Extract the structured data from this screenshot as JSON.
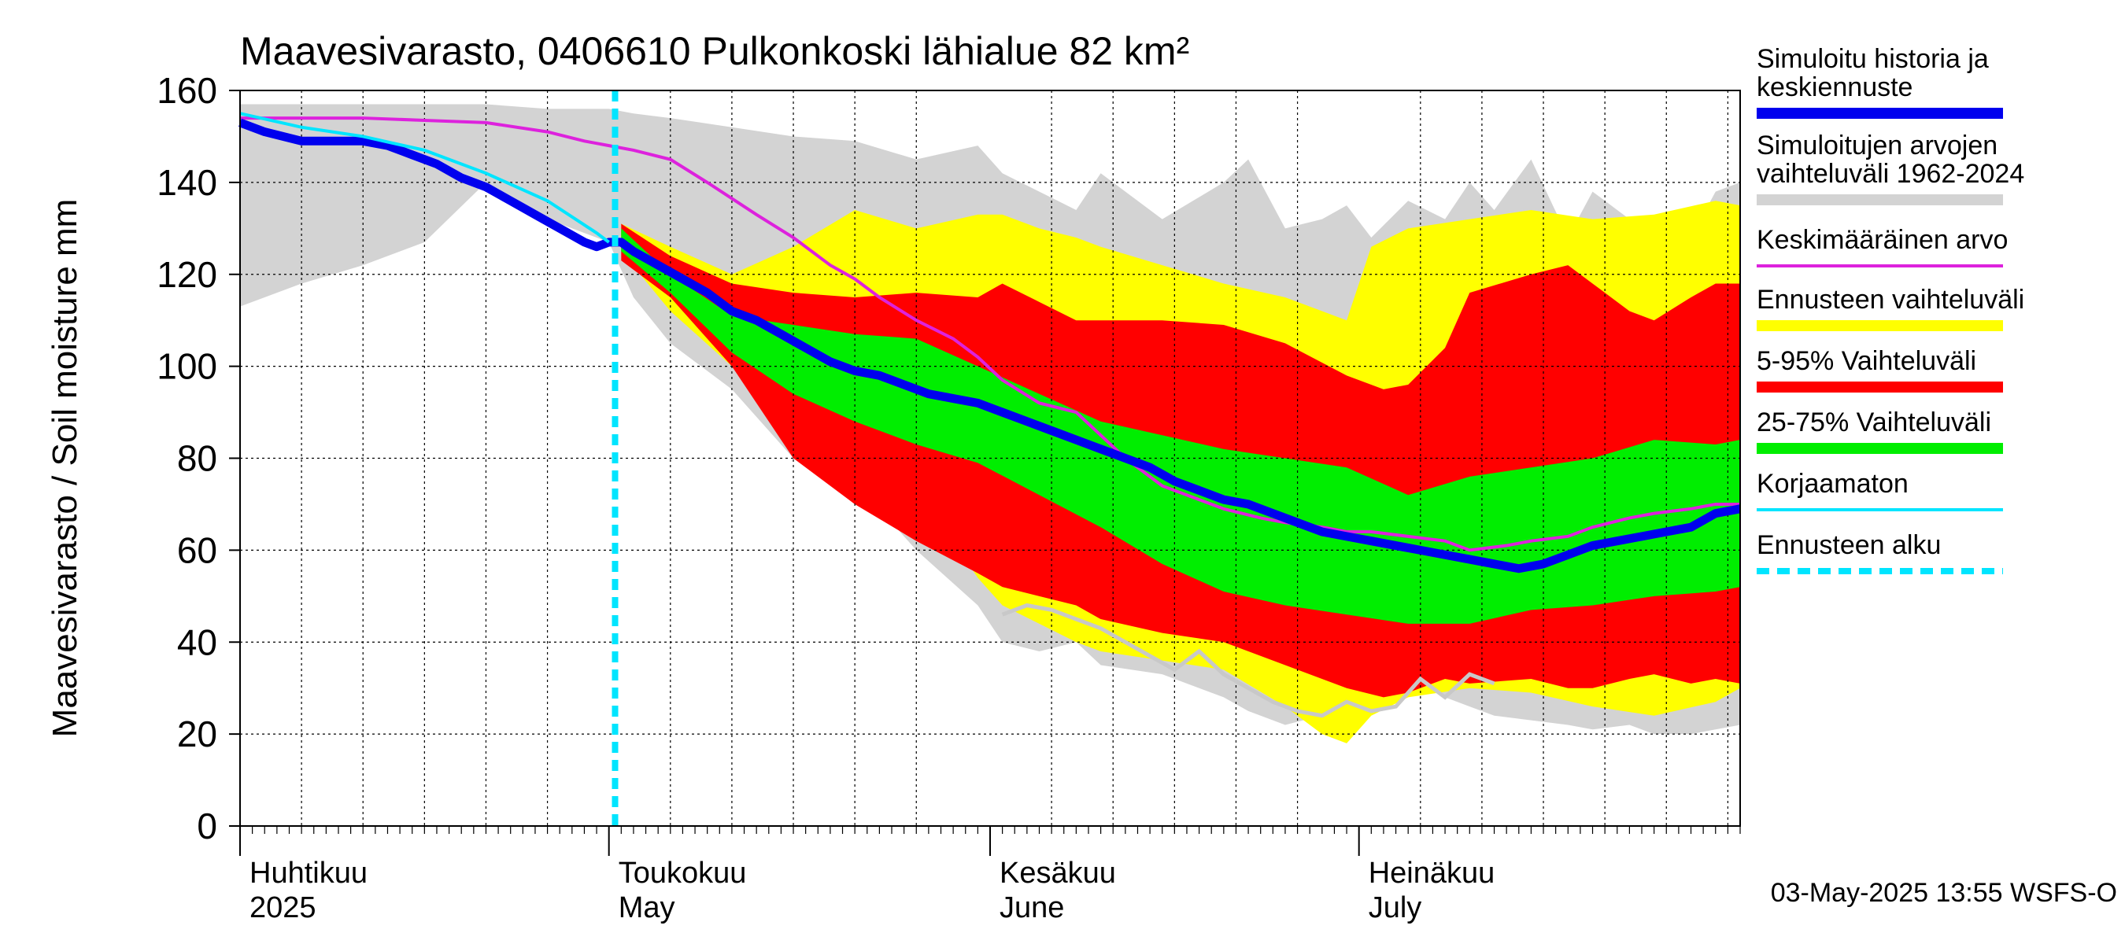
{
  "chart_data": {
    "type": "area",
    "title": "Maavesivarasto, 0406610 Pulkonkoski lähialue 82 km²",
    "ylabel": "Maavesivarasto / Soil moisture   mm",
    "ylim": [
      0,
      160
    ],
    "yticks": [
      0,
      20,
      40,
      60,
      80,
      100,
      120,
      140,
      160
    ],
    "x_unit": "days since 1 April 2025",
    "xlim": [
      0,
      122
    ],
    "forecast_start_day": 30.5,
    "months": [
      {
        "name_fi": "Huhtikuu",
        "name_en": "2025",
        "start_day": 0
      },
      {
        "name_fi": "Toukokuu",
        "name_en": "May",
        "start_day": 30
      },
      {
        "name_fi": "Kesäkuu",
        "name_en": "June",
        "start_day": 61
      },
      {
        "name_fi": "Heinäkuu",
        "name_en": "July",
        "start_day": 91
      }
    ],
    "timestamp": "03-May-2025 13:55 WSFS-O",
    "legend": [
      {
        "label": "Simuloitu historia ja keskiennuste",
        "color": "#0000ee",
        "style": "thick"
      },
      {
        "label": "Simuloitujen arvojen vaihteluväli 1962-2024",
        "color": "#d3d3d3",
        "style": "band"
      },
      {
        "label": "Keskimääräinen arvo",
        "color": "#dd22dd",
        "style": "line"
      },
      {
        "label": "Ennusteen vaihteluväli",
        "color": "#ffff00",
        "style": "band"
      },
      {
        "label": "5-95% Vaihteluväli",
        "color": "#ff0000",
        "style": "band"
      },
      {
        "label": "25-75% Vaihteluväli",
        "color": "#00ee00",
        "style": "band"
      },
      {
        "label": "Korjaamaton",
        "color": "#00e5ff",
        "style": "line"
      },
      {
        "label": "Ennusteen alku",
        "color": "#00e5ff",
        "style": "dashed"
      }
    ],
    "series": {
      "history_range": {
        "x": [
          0,
          5,
          10,
          15,
          20,
          25,
          29,
          30,
          32,
          35,
          40,
          45,
          50,
          55,
          60,
          62,
          65,
          68,
          70,
          75,
          80,
          82,
          85,
          88,
          90,
          92,
          95,
          98,
          100,
          102,
          105,
          108,
          110,
          113,
          115,
          118,
          120,
          122
        ],
        "upper": [
          157,
          157,
          157,
          157,
          157,
          156,
          156,
          156,
          155,
          154,
          152,
          150,
          149,
          145,
          148,
          142,
          138,
          134,
          142,
          132,
          140,
          145,
          130,
          132,
          135,
          128,
          136,
          132,
          140,
          134,
          145,
          128,
          138,
          132,
          130,
          128,
          138,
          140
        ],
        "lower": [
          113,
          118,
          122,
          127,
          140,
          132,
          128,
          127,
          115,
          105,
          95,
          80,
          75,
          60,
          48,
          40,
          38,
          40,
          35,
          33,
          28,
          25,
          22,
          24,
          26,
          30,
          33,
          28,
          26,
          24,
          23,
          22,
          21,
          22,
          20,
          20,
          21,
          22
        ]
      },
      "forecast_range": {
        "x": [
          31,
          35,
          40,
          45,
          50,
          55,
          60,
          62,
          65,
          68,
          70,
          75,
          80,
          85,
          88,
          90,
          92,
          95,
          100,
          105,
          110,
          115,
          120,
          122
        ],
        "upper": [
          131,
          126,
          120,
          126,
          134,
          130,
          133,
          133,
          130,
          128,
          126,
          122,
          118,
          115,
          112,
          110,
          126,
          130,
          132,
          134,
          132,
          133,
          136,
          135
        ],
        "lower": [
          125,
          112,
          100,
          88,
          82,
          74,
          54,
          48,
          44,
          40,
          38,
          36,
          34,
          26,
          20,
          18,
          24,
          28,
          30,
          29,
          26,
          24,
          27,
          30
        ]
      },
      "p5_95": {
        "x": [
          31,
          35,
          40,
          45,
          50,
          55,
          60,
          62,
          65,
          68,
          70,
          75,
          80,
          85,
          90,
          93,
          95,
          98,
          100,
          105,
          108,
          110,
          113,
          115,
          118,
          120,
          122
        ],
        "upper": [
          131,
          124,
          118,
          116,
          115,
          116,
          115,
          118,
          114,
          110,
          110,
          110,
          109,
          105,
          98,
          95,
          96,
          104,
          116,
          120,
          122,
          118,
          112,
          110,
          115,
          118,
          118
        ],
        "lower": [
          123,
          115,
          100,
          80,
          70,
          62,
          55,
          52,
          50,
          48,
          45,
          42,
          40,
          35,
          30,
          28,
          29,
          32,
          31,
          32,
          30,
          30,
          32,
          33,
          31,
          32,
          31
        ]
      },
      "p25_75": {
        "x": [
          31,
          35,
          40,
          45,
          50,
          55,
          60,
          65,
          70,
          75,
          80,
          85,
          90,
          95,
          100,
          105,
          110,
          115,
          120,
          122
        ],
        "upper": [
          130,
          120,
          111,
          109,
          107,
          106,
          100,
          94,
          88,
          85,
          82,
          80,
          78,
          72,
          76,
          78,
          80,
          84,
          83,
          84
        ],
        "lower": [
          125,
          116,
          103,
          94,
          88,
          83,
          79,
          72,
          65,
          57,
          51,
          48,
          46,
          44,
          44,
          47,
          48,
          50,
          51,
          52
        ]
      },
      "mean": {
        "x": [
          0,
          5,
          10,
          15,
          20,
          25,
          28,
          30,
          32,
          35,
          38,
          42,
          45,
          48,
          50,
          52,
          55,
          58,
          60,
          62,
          65,
          68,
          70,
          72,
          75,
          78,
          80,
          83,
          85,
          88,
          90,
          92,
          95,
          98,
          100,
          103,
          105,
          108,
          110,
          113,
          115,
          118,
          120,
          122
        ],
        "values": [
          154,
          154,
          154,
          153.5,
          153,
          151,
          149,
          148,
          147,
          145,
          140,
          133,
          128,
          122,
          119,
          115,
          110,
          106,
          102,
          97,
          92,
          90,
          85,
          80,
          74,
          71,
          69,
          67,
          66,
          65,
          64,
          64,
          63,
          62,
          60,
          61,
          62,
          63,
          65,
          67,
          68,
          69,
          70,
          70
        ]
      },
      "median_forecast": {
        "x": [
          0,
          2,
          5,
          8,
          10,
          12,
          14,
          16,
          18,
          20,
          22,
          24,
          26,
          28,
          29,
          30,
          31,
          32,
          34,
          36,
          38,
          40,
          42,
          44,
          46,
          48,
          50,
          52,
          54,
          56,
          58,
          60,
          62,
          64,
          66,
          68,
          70,
          72,
          74,
          76,
          78,
          80,
          82,
          84,
          86,
          88,
          90,
          92,
          94,
          96,
          98,
          100,
          102,
          104,
          106,
          108,
          110,
          112,
          114,
          116,
          118,
          120,
          122
        ],
        "values": [
          153,
          151,
          149,
          149,
          149,
          148,
          146,
          144,
          141,
          139,
          136,
          133,
          130,
          127,
          126,
          127,
          127,
          125,
          122,
          119,
          116,
          112,
          110,
          107,
          104,
          101,
          99,
          98,
          96,
          94,
          93,
          92,
          90,
          88,
          86,
          84,
          82,
          80,
          78,
          75,
          73,
          71,
          70,
          68,
          66,
          64,
          63,
          62,
          61,
          60,
          59,
          58,
          57,
          56,
          57,
          59,
          61,
          62,
          63,
          64,
          65,
          68,
          69
        ]
      },
      "uncorrected": {
        "x": [
          0,
          5,
          10,
          15,
          20,
          25,
          29,
          30
        ],
        "values": [
          155,
          152,
          150,
          147,
          142,
          136,
          129,
          127
        ]
      },
      "lowest_year": {
        "x": [
          62,
          64,
          66,
          68,
          70,
          72,
          74,
          76,
          78,
          80,
          82,
          84,
          86,
          88,
          90,
          92,
          94,
          96,
          98,
          100,
          102
        ],
        "values": [
          46,
          48,
          47,
          45,
          43,
          40,
          37,
          34,
          38,
          33,
          30,
          27,
          25,
          24,
          27,
          25,
          26,
          32,
          28,
          33,
          31
        ]
      }
    }
  }
}
